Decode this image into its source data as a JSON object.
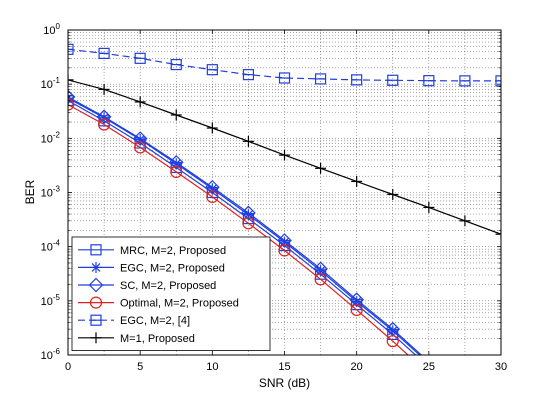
{
  "chart_data": {
    "type": "line",
    "title": "",
    "xlabel": "SNR (dB)",
    "ylabel": "BER",
    "xlim": [
      0,
      30
    ],
    "ylim": [
      1e-06,
      1
    ],
    "yscale": "log",
    "grid": "dotted, major and minor",
    "legend_position": "bottom-left",
    "x_ticks": [
      "0",
      "5",
      "10",
      "15",
      "20",
      "25",
      "30"
    ],
    "y_ticks": [
      {
        "base": "10",
        "exp": "0"
      },
      {
        "base": "10",
        "exp": "-1"
      },
      {
        "base": "10",
        "exp": "-2"
      },
      {
        "base": "10",
        "exp": "-3"
      },
      {
        "base": "10",
        "exp": "-4"
      },
      {
        "base": "10",
        "exp": "-5"
      },
      {
        "base": "10",
        "exp": "-6"
      }
    ],
    "series": [
      {
        "name": "MRC, M=2, Proposed",
        "color": "#1f3fe0",
        "dash": "solid",
        "marker": "square",
        "x": [
          0,
          2.5,
          5,
          7.5,
          10,
          12.5,
          15,
          17.5,
          20,
          22.5,
          25
        ],
        "y": [
          0.05,
          0.021,
          0.0082,
          0.0029,
          0.001,
          0.00033,
          0.000105,
          3.1e-05,
          8.5e-06,
          2.4e-06,
          6e-07
        ]
      },
      {
        "name": "EGC, M=2, Proposed",
        "color": "#1f3fe0",
        "dash": "solid",
        "marker": "asterisk",
        "x": [
          0,
          2.5,
          5,
          7.5,
          10,
          12.5,
          15,
          17.5,
          20,
          22.5,
          25
        ],
        "y": [
          0.055,
          0.024,
          0.0095,
          0.0034,
          0.00117,
          0.00039,
          0.000122,
          3.6e-05,
          9.7e-06,
          2.8e-06,
          7e-07
        ]
      },
      {
        "name": "SC, M=2, Proposed",
        "color": "#1f3fe0",
        "dash": "solid",
        "marker": "diamond",
        "x": [
          0,
          2.5,
          5,
          7.5,
          10,
          12.5,
          15,
          17.5,
          20,
          22.5,
          25
        ],
        "y": [
          0.058,
          0.025,
          0.0099,
          0.0036,
          0.00125,
          0.00042,
          0.00013,
          3.9e-05,
          1.05e-05,
          3e-06,
          7.5e-07
        ]
      },
      {
        "name": "Optimal, M=2, Proposed",
        "color": "#e0201c",
        "dash": "solid",
        "marker": "circle",
        "x": [
          0,
          2.5,
          5,
          7.5,
          10,
          12.5,
          15,
          17.5,
          20,
          22.5,
          25
        ],
        "y": [
          0.042,
          0.018,
          0.0068,
          0.0024,
          0.00083,
          0.00027,
          8.5e-05,
          2.5e-05,
          6.8e-06,
          1.8e-06,
          4.5e-07
        ]
      },
      {
        "name": "EGC, M=2, [4]",
        "color": "#1f3fe0",
        "dash": "dashed",
        "marker": "square-line",
        "x": [
          0,
          2.5,
          5,
          7.5,
          10,
          12.5,
          15,
          17.5,
          20,
          22.5,
          25,
          27.5,
          30
        ],
        "y": [
          0.44,
          0.37,
          0.3,
          0.23,
          0.185,
          0.15,
          0.13,
          0.125,
          0.12,
          0.118,
          0.116,
          0.115,
          0.115
        ]
      },
      {
        "name": "M=1, Proposed",
        "color": "#000000",
        "dash": "solid",
        "marker": "plus",
        "x": [
          0,
          2.5,
          5,
          7.5,
          10,
          12.5,
          15,
          17.5,
          20,
          22.5,
          25,
          27.5,
          30
        ],
        "y": [
          0.12,
          0.08,
          0.047,
          0.027,
          0.0155,
          0.0088,
          0.0049,
          0.0028,
          0.0016,
          0.00092,
          0.00053,
          0.0003,
          0.00017
        ]
      }
    ]
  }
}
